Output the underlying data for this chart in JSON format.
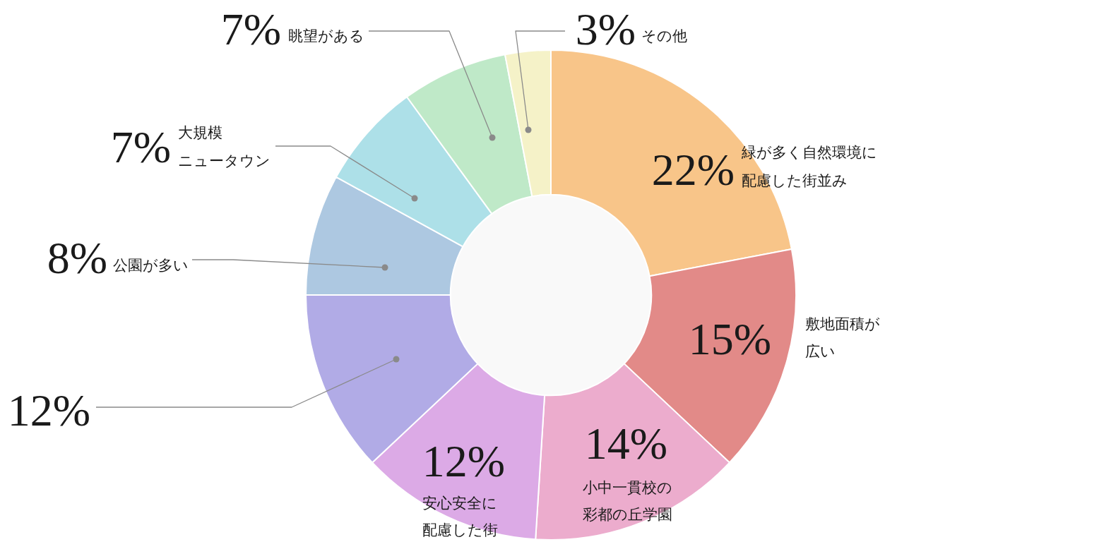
{
  "chart_data": {
    "type": "donut",
    "categories": [
      "緑が多く自然環境に配慮した街並み",
      "敷地面積が広い",
      "小中一貫校の彩都の丘学園",
      "安心安全に配慮した街",
      null,
      "公園が多い",
      "大規模ニュータウン",
      "眺望がある",
      "その他"
    ],
    "values": [
      22,
      15,
      14,
      12,
      12,
      8,
      7,
      7,
      3
    ],
    "colors": [
      "#f8c589",
      "#e28a88",
      "#ecaccd",
      "#dcaae6",
      "#b1abe6",
      "#adc8e1",
      "#ade0e8",
      "#bfe9c8",
      "#f5f2c8"
    ],
    "value_labels": [
      "22%",
      "15%",
      "14%",
      "12%",
      "12%",
      "8%",
      "7%",
      "7%",
      "3%"
    ],
    "legend": false
  }
}
